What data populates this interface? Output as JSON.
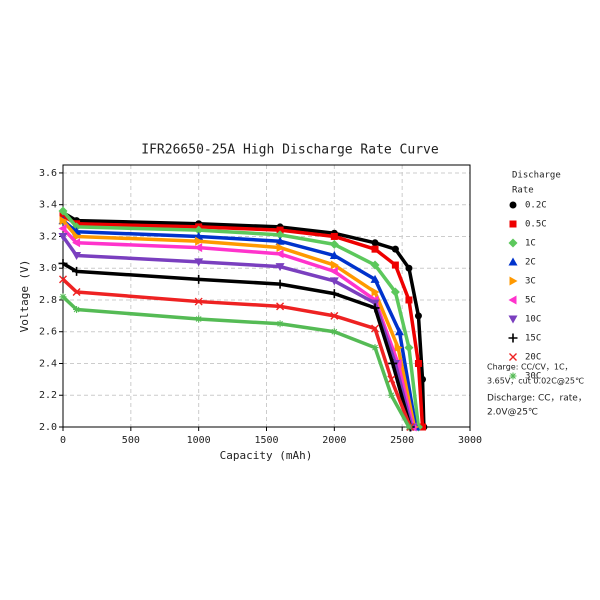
{
  "chart_data": {
    "type": "line",
    "title": "IFR26650-25A High Discharge Rate Curve",
    "x_label": "Capacity (mAh)",
    "y_label": "Voltage (V)",
    "legend_title": [
      "Discharge",
      "Rate"
    ],
    "annotations": [
      [
        "Charge: CC/CV，1C，",
        "3.65V，cut 0.02C@25℃"
      ],
      [
        "Discharge: CC，rate，",
        "2.0V@25℃"
      ]
    ],
    "xlim": [
      0,
      3000
    ],
    "xticks": [
      0,
      500,
      1000,
      1500,
      2000,
      2500,
      3000
    ],
    "ylim": [
      2.0,
      3.65
    ],
    "yticks": [
      {
        "value": 2.0,
        "label": "2.0"
      },
      {
        "value": 2.2,
        "label": "2.2"
      },
      {
        "value": 2.4,
        "label": "2.4"
      },
      {
        "value": 2.6,
        "label": "2.6"
      },
      {
        "value": 2.8,
        "label": "2.8"
      },
      {
        "value": 3.0,
        "label": "3.0"
      },
      {
        "value": 3.2,
        "label": "3.2"
      },
      {
        "value": 3.4,
        "label": "3.4"
      },
      {
        "value": 3.6,
        "label": "3.6"
      }
    ],
    "grid": true,
    "series": [
      {
        "name": "0.2C",
        "color": "#000000",
        "marker": "circle",
        "x": [
          0,
          100,
          1000,
          1600,
          2000,
          2300,
          2450,
          2550,
          2620,
          2650,
          2660
        ],
        "values": [
          3.35,
          3.3,
          3.28,
          3.26,
          3.22,
          3.16,
          3.12,
          3.0,
          2.7,
          2.3,
          2.0
        ]
      },
      {
        "name": "0.5C",
        "color": "#ee0000",
        "marker": "square",
        "x": [
          0,
          100,
          1000,
          1600,
          2000,
          2300,
          2450,
          2550,
          2620,
          2650
        ],
        "values": [
          3.33,
          3.28,
          3.26,
          3.24,
          3.2,
          3.12,
          3.02,
          2.8,
          2.4,
          2.0
        ]
      },
      {
        "name": "1C",
        "color": "#5cc85c",
        "marker": "diamond",
        "x": [
          0,
          100,
          1000,
          1600,
          2000,
          2300,
          2450,
          2550,
          2620
        ],
        "values": [
          3.36,
          3.26,
          3.24,
          3.21,
          3.15,
          3.02,
          2.85,
          2.5,
          2.0
        ]
      },
      {
        "name": "2C",
        "color": "#0033cc",
        "marker": "triangle-up",
        "x": [
          0,
          100,
          1000,
          1600,
          2000,
          2300,
          2480,
          2600
        ],
        "values": [
          3.3,
          3.23,
          3.2,
          3.17,
          3.08,
          2.93,
          2.6,
          2.0
        ]
      },
      {
        "name": "3C",
        "color": "#ff9900",
        "marker": "triangle-right",
        "x": [
          0,
          100,
          1000,
          1600,
          2000,
          2300,
          2470,
          2590
        ],
        "values": [
          3.3,
          3.2,
          3.17,
          3.13,
          3.02,
          2.85,
          2.5,
          2.0
        ]
      },
      {
        "name": "5C",
        "color": "#ff33cc",
        "marker": "triangle-left",
        "x": [
          0,
          100,
          1000,
          1600,
          2000,
          2300,
          2470,
          2580
        ],
        "values": [
          3.25,
          3.16,
          3.13,
          3.09,
          2.98,
          2.8,
          2.4,
          2.0
        ]
      },
      {
        "name": "10C",
        "color": "#7a3fbf",
        "marker": "triangle-down",
        "x": [
          0,
          100,
          1000,
          1600,
          2000,
          2300,
          2450,
          2570
        ],
        "values": [
          3.2,
          3.08,
          3.04,
          3.01,
          2.92,
          2.78,
          2.4,
          2.0
        ]
      },
      {
        "name": "15C",
        "color": "#000000",
        "marker": "plus",
        "x": [
          0,
          100,
          1000,
          1600,
          2000,
          2300,
          2430,
          2560
        ],
        "values": [
          3.03,
          2.98,
          2.93,
          2.9,
          2.84,
          2.75,
          2.4,
          2.0
        ]
      },
      {
        "name": "20C",
        "color": "#ee2222",
        "marker": "cross",
        "x": [
          0,
          100,
          1000,
          1600,
          2000,
          2300,
          2420,
          2560
        ],
        "values": [
          2.93,
          2.85,
          2.79,
          2.76,
          2.7,
          2.62,
          2.3,
          2.0
        ]
      },
      {
        "name": "30C",
        "color": "#55bb55",
        "marker": "asterisk",
        "x": [
          0,
          100,
          1000,
          1600,
          2000,
          2300,
          2420,
          2550
        ],
        "values": [
          2.82,
          2.74,
          2.68,
          2.65,
          2.6,
          2.5,
          2.2,
          2.0
        ]
      }
    ]
  }
}
